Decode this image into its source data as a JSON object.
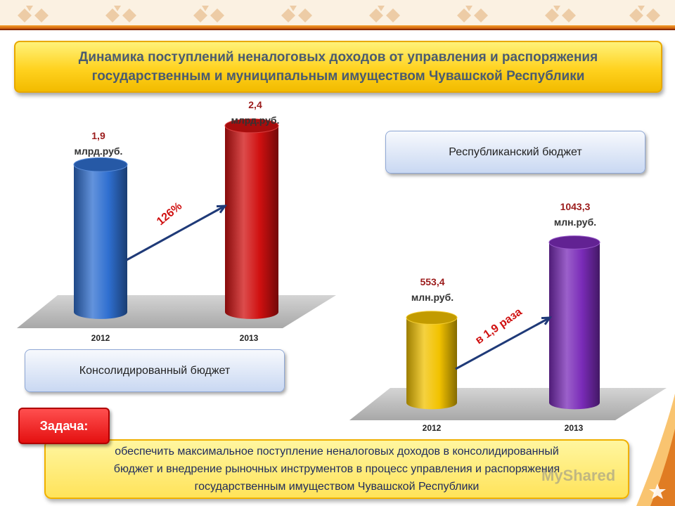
{
  "title": "Динамика поступлений неналоговых доходов от управления и распоряжения\nгосударственным и муниципальным имуществом Чувашской Республики",
  "panels": {
    "republican_label": "Республиканский бюджет",
    "consolidated_label": "Консолидированный бюджет"
  },
  "task": {
    "badge": "Задача:",
    "text": "обеспечить максимальное поступление неналоговых доходов в консолидированный\nбюджет и внедрение рыночных инструментов в процесс управления и распоряжения\nгосударственным  имуществом  Чувашской Республики"
  },
  "watermark": "MyShared",
  "colors": {
    "blue_bar": "#2f6fd0",
    "red_bar": "#d01010",
    "yellow_bar": "#f2c200",
    "purple_bar": "#7a2bb8",
    "arrow": "#1f3a78",
    "growth_text": "#d01010"
  },
  "chart_data": [
    {
      "type": "bar",
      "title": "Консолидированный бюджет",
      "categories": [
        "2012",
        "2013"
      ],
      "values": [
        1.9,
        2.4
      ],
      "value_labels": [
        "1,9",
        "2,4"
      ],
      "unit": "млрд.руб.",
      "growth_label": "126%"
    },
    {
      "type": "bar",
      "title": "Республиканский бюджет",
      "categories": [
        "2012",
        "2013"
      ],
      "values": [
        553.4,
        1043.3
      ],
      "value_labels": [
        "553,4",
        "1043,3"
      ],
      "unit": "млн.руб.",
      "growth_label": "в 1,9 раза"
    }
  ]
}
